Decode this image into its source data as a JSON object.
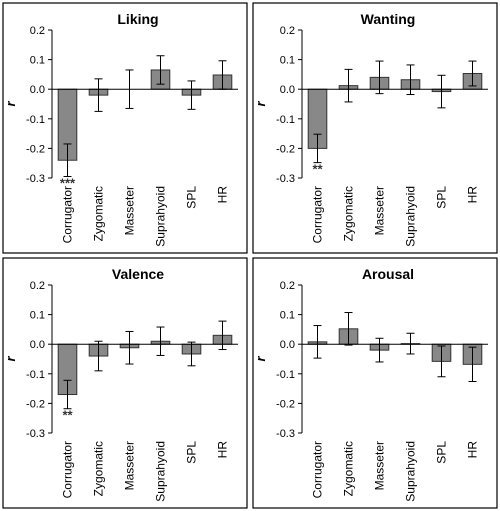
{
  "chart_data": [
    {
      "type": "bar",
      "title": "Liking",
      "ylabel": "r",
      "categories": [
        "Corrugator",
        "Zygomatic",
        "Masseter",
        "Suprahyoid",
        "SPL",
        "HR"
      ],
      "values": [
        -0.24,
        -0.02,
        0.0,
        0.065,
        -0.02,
        0.048
      ],
      "errors": [
        0.055,
        0.055,
        0.065,
        0.048,
        0.048,
        0.048
      ],
      "significance": [
        "***",
        null,
        null,
        null,
        null,
        null
      ],
      "color": "#888888",
      "ylim": [
        -0.3,
        0.2
      ],
      "yticks": [
        0.2,
        0.1,
        {
          "value": 0,
          "label": "0.0"
        },
        -0.1,
        -0.2,
        -0.3
      ]
    },
    {
      "type": "bar",
      "title": "Wanting",
      "ylabel": "r",
      "categories": [
        "Corrugator",
        "Zygomatic",
        "Masseter",
        "Suprahyoid",
        "SPL",
        "HR"
      ],
      "values": [
        -0.2,
        0.012,
        0.04,
        0.032,
        -0.008,
        0.053
      ],
      "errors": [
        0.048,
        0.055,
        0.055,
        0.05,
        0.055,
        0.042
      ],
      "significance": [
        "**",
        null,
        null,
        null,
        null,
        null
      ],
      "color": "#888888",
      "ylim": [
        -0.3,
        0.2
      ],
      "yticks": [
        0.2,
        0.1,
        {
          "value": 0,
          "label": "0.0"
        },
        -0.1,
        -0.2,
        -0.3
      ]
    },
    {
      "type": "bar",
      "title": "Valence",
      "ylabel": "r",
      "categories": [
        "Corrugator",
        "Zygomatic",
        "Masseter",
        "Suprahyoid",
        "SPL",
        "HR"
      ],
      "values": [
        -0.17,
        -0.04,
        -0.012,
        0.01,
        -0.033,
        0.03
      ],
      "errors": [
        0.048,
        0.05,
        0.055,
        0.048,
        0.04,
        0.048
      ],
      "significance": [
        "**",
        null,
        null,
        null,
        null,
        null
      ],
      "color": "#888888",
      "ylim": [
        -0.3,
        0.2
      ],
      "yticks": [
        0.2,
        0.1,
        {
          "value": 0,
          "label": "0.0"
        },
        -0.1,
        -0.2,
        -0.3
      ]
    },
    {
      "type": "bar",
      "title": "Arousal",
      "ylabel": "r",
      "categories": [
        "Corrugator",
        "Zygomatic",
        "Masseter",
        "Suprahyoid",
        "SPL",
        "HR"
      ],
      "values": [
        0.008,
        0.052,
        -0.02,
        0.002,
        -0.058,
        -0.068
      ],
      "errors": [
        0.055,
        0.055,
        0.04,
        0.035,
        0.052,
        0.058
      ],
      "significance": [
        null,
        null,
        null,
        null,
        null,
        null
      ],
      "color": "#888888",
      "ylim": [
        -0.3,
        0.2
      ],
      "yticks": [
        0.2,
        0.1,
        {
          "value": 0,
          "label": "0.0"
        },
        -0.1,
        -0.2,
        -0.3
      ]
    }
  ]
}
